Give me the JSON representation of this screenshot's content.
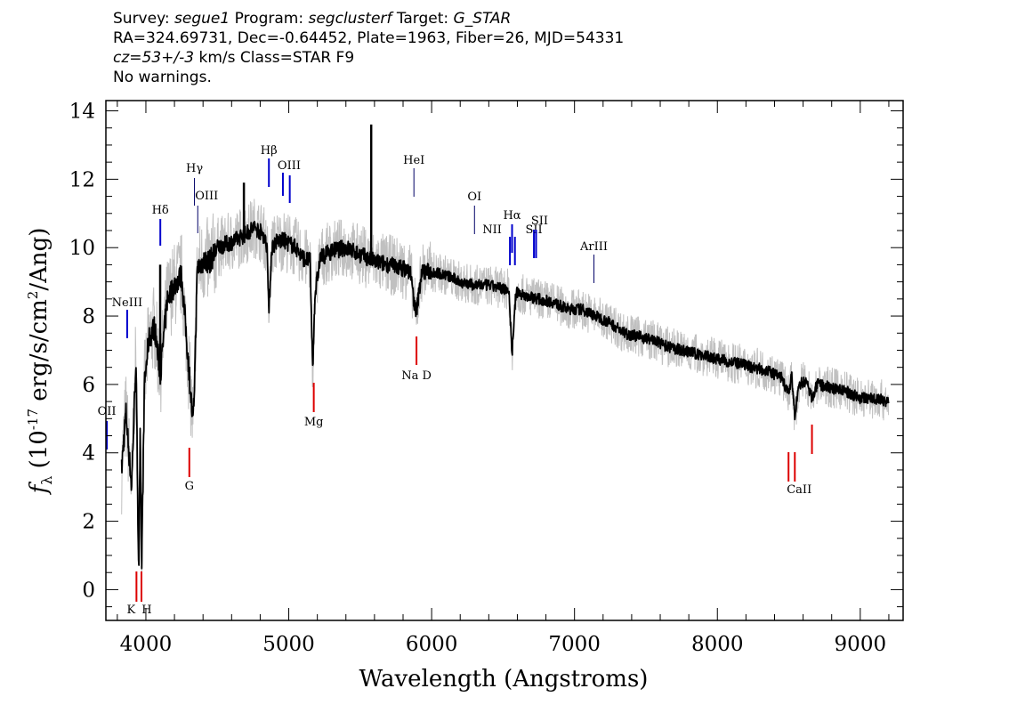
{
  "header": {
    "line1": {
      "survey_label": "Survey:",
      "survey_value": "segue1",
      "program_label": "Program:",
      "program_value": "segclusterf",
      "target_label": "Target:",
      "target_value": "G_STAR"
    },
    "line2": "RA=324.69731, Dec=-0.64452, Plate=1963, Fiber=26, MJD=54331",
    "line3": {
      "cz_value": "cz=53+/-3",
      "cz_rest": " km/s Class=STAR F9"
    },
    "line4": "No warnings."
  },
  "chart_data": {
    "type": "line",
    "xlabel": "Wavelength (Angstroms)",
    "ylabel": "f_λ (10^-17 erg/s/cm^2/Ang)",
    "xlim": [
      3720,
      9300
    ],
    "ylim": [
      -0.9,
      14.3
    ],
    "xticks": [
      4000,
      5000,
      6000,
      7000,
      8000,
      9000
    ],
    "yticks": [
      0,
      2,
      4,
      6,
      8,
      10,
      12,
      14
    ],
    "series": [
      {
        "style": "black",
        "x": [
          3830,
          3860,
          3900,
          3930,
          3950,
          3960,
          3970,
          3990,
          4020,
          4060,
          4101,
          4150,
          4200,
          4250,
          4300,
          4330,
          4340,
          4360,
          4400,
          4450,
          4500,
          4560,
          4620,
          4700,
          4760,
          4820,
          4850,
          4861,
          4880,
          4920,
          4970,
          5050,
          5100,
          5150,
          5167,
          5183,
          5220,
          5300,
          5400,
          5500,
          5600,
          5700,
          5800,
          5850,
          5890,
          5930,
          6000,
          6100,
          6200,
          6300,
          6400,
          6500,
          6540,
          6563,
          6590,
          6650,
          6750,
          6850,
          6950,
          7050,
          7150,
          7250,
          7350,
          7450,
          7550,
          7650,
          7750,
          7850,
          7950,
          8050,
          8150,
          8250,
          8350,
          8450,
          8498,
          8520,
          8542,
          8570,
          8620,
          8662,
          8700,
          8800,
          8900,
          9000,
          9100,
          9200
        ],
        "y": [
          3.5,
          5.2,
          3.0,
          6.8,
          0.5,
          4.5,
          0.6,
          6.0,
          7.3,
          7.7,
          6.3,
          8.5,
          8.9,
          9.2,
          6.5,
          4.8,
          6.0,
          9.4,
          9.6,
          9.6,
          10.0,
          10.1,
          10.2,
          10.4,
          10.6,
          10.4,
          10.0,
          8.0,
          10.0,
          10.2,
          10.2,
          10.0,
          9.7,
          9.6,
          6.4,
          8.6,
          9.7,
          9.9,
          10.0,
          9.8,
          9.6,
          9.5,
          9.4,
          9.3,
          8.0,
          9.3,
          9.3,
          9.2,
          9.0,
          8.9,
          8.9,
          8.8,
          8.8,
          6.9,
          8.7,
          8.6,
          8.5,
          8.4,
          8.2,
          8.2,
          8.0,
          7.8,
          7.5,
          7.4,
          7.3,
          7.1,
          7.0,
          6.9,
          6.8,
          6.7,
          6.6,
          6.5,
          6.4,
          6.2,
          5.7,
          6.3,
          5.0,
          6.0,
          6.1,
          5.6,
          6.0,
          5.9,
          5.8,
          5.6,
          5.6,
          5.5
        ]
      }
    ],
    "spikes": [
      {
        "x": 5577,
        "y": 13.6
      },
      {
        "x": 4686,
        "y": 11.9
      },
      {
        "x": 4100,
        "y": 9.5
      }
    ],
    "line_labels": [
      {
        "text": "OII",
        "x": 3727
      },
      {
        "text": "NeIII",
        "x": 3869
      },
      {
        "text": "Hδ",
        "x": 4101
      },
      {
        "text": "Hγ",
        "x": 4340
      },
      {
        "text": "OIII",
        "x": 4363
      },
      {
        "text": "Hβ",
        "x": 4861
      },
      {
        "text": "OIII",
        "x": 4959
      },
      {
        "text": "OIII",
        "x": 5007
      },
      {
        "text": "HeI",
        "x": 5876
      },
      {
        "text": "OI",
        "x": 6300
      },
      {
        "text": "NII",
        "x": 6548
      },
      {
        "text": "Hα",
        "x": 6563
      },
      {
        "text": "NII",
        "x": 6583
      },
      {
        "text": "SII",
        "x": 6716
      },
      {
        "text": "SII",
        "x": 6731
      },
      {
        "text": "ArIII",
        "x": 7136
      },
      {
        "text": "K",
        "x": 3934
      },
      {
        "text": "H",
        "x": 3969
      },
      {
        "text": "G",
        "x": 4304
      },
      {
        "text": "Mg",
        "x": 5175
      },
      {
        "text": "Na D",
        "x": 5894
      },
      {
        "text": "CaII",
        "x": 8498
      },
      {
        "text": "CaII",
        "x": 8542
      },
      {
        "text": "CaII",
        "x": 8662
      }
    ]
  },
  "colors": {
    "flux": "#000000",
    "noise": "#c0c0c0",
    "emission": "#0000cc",
    "absorption": "#dd0000"
  }
}
